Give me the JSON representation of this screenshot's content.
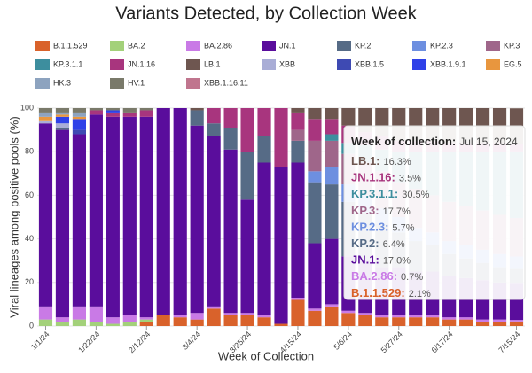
{
  "chart_data": {
    "type": "stacked_bar",
    "title": "Variants Detected, by Collection Week",
    "x_label": "Week of Collection",
    "y_label": "Viral lineages among positive pools (%)",
    "categories": [
      "1/1/24",
      null,
      null,
      "1/22/24",
      null,
      null,
      "2/12/24",
      null,
      null,
      "3/4/24",
      null,
      null,
      "3/25/24",
      null,
      null,
      "4/15/24",
      null,
      null,
      "5/6/24",
      null,
      null,
      "5/27/24",
      null,
      null,
      "6/17/24",
      null,
      null,
      null,
      "7/15/24"
    ],
    "ylim": [
      0,
      100
    ],
    "yticks": [
      0,
      20,
      40,
      60,
      80,
      100
    ],
    "series": [
      {
        "name": "B.1.1.529",
        "color": "#d9622b",
        "values": [
          0,
          0,
          0,
          0,
          0,
          0,
          2,
          5,
          4,
          3,
          8,
          5,
          5,
          4,
          1,
          12,
          7,
          9,
          6,
          5,
          4,
          4,
          4,
          4,
          3,
          3,
          2,
          2,
          2.1
        ]
      },
      {
        "name": "BA.2",
        "color": "#a3d17a",
        "values": [
          3,
          2,
          3,
          2,
          1,
          2,
          1,
          0,
          0,
          0,
          0,
          0,
          0,
          0,
          0,
          0,
          0,
          0,
          0,
          0,
          0,
          0,
          0,
          0,
          0,
          0,
          0,
          0,
          0
        ]
      },
      {
        "name": "BA.2.86",
        "color": "#c97ae6",
        "values": [
          6,
          2,
          6,
          7,
          3,
          3,
          1,
          0,
          1,
          3,
          1,
          1,
          1,
          1,
          0,
          1,
          1,
          1,
          1,
          1,
          1,
          1,
          1,
          1,
          1,
          1,
          1,
          1,
          0.7
        ]
      },
      {
        "name": "JN.1",
        "color": "#5a0d9c",
        "values": [
          84,
          86,
          79,
          88,
          92,
          91,
          92,
          95,
          95,
          86,
          78,
          75,
          52,
          70,
          72,
          62,
          30,
          30,
          25,
          24,
          22,
          22,
          20,
          20,
          19,
          18,
          18,
          17,
          17.0
        ]
      },
      {
        "name": "KP.2",
        "color": "#566b86",
        "values": [
          0,
          1,
          0,
          0,
          0,
          0,
          0,
          0,
          0,
          7,
          6,
          10,
          22,
          12,
          0,
          10,
          28,
          25,
          25,
          22,
          20,
          16,
          14,
          12,
          10,
          9,
          8,
          7,
          6.4
        ]
      },
      {
        "name": "KP.2.3",
        "color": "#6d8fe0",
        "values": [
          0,
          0,
          0,
          0,
          0,
          0,
          0,
          0,
          0,
          0,
          0,
          0,
          0,
          0,
          0,
          0,
          5,
          8,
          8,
          8,
          7,
          7,
          6,
          6,
          6,
          6,
          6,
          6,
          5.7
        ]
      },
      {
        "name": "KP.3",
        "color": "#9f668a",
        "values": [
          0,
          0,
          0,
          0,
          0,
          0,
          0,
          0,
          0,
          0,
          0,
          0,
          0,
          0,
          0,
          5,
          14,
          12,
          14,
          15,
          17,
          16,
          18,
          17,
          18,
          18,
          18,
          18,
          17.7
        ]
      },
      {
        "name": "KP.3.1.1",
        "color": "#3d8e9e",
        "values": [
          0,
          0,
          0,
          0,
          0,
          0,
          0,
          0,
          0,
          0,
          0,
          0,
          0,
          0,
          0,
          0,
          0,
          3,
          5,
          8,
          10,
          14,
          17,
          20,
          23,
          25,
          27,
          29,
          30.5
        ]
      },
      {
        "name": "JN.1.16",
        "color": "#a8357e",
        "values": [
          0,
          0,
          0,
          2,
          2,
          2,
          3,
          0,
          0,
          0,
          7,
          9,
          20,
          13,
          27,
          8,
          10,
          7,
          8,
          6,
          6,
          5,
          5,
          5,
          4,
          4,
          4,
          4,
          3.5
        ]
      },
      {
        "name": "LB.1",
        "color": "#6e5650",
        "values": [
          0,
          0,
          0,
          0,
          0,
          0,
          0,
          0,
          0,
          1,
          0,
          0,
          0,
          0,
          0,
          2,
          5,
          5,
          8,
          11,
          13,
          15,
          15,
          15,
          16,
          16,
          16,
          16,
          16.3
        ]
      },
      {
        "name": "XBB",
        "color": "#a9add6",
        "values": [
          1,
          2,
          0,
          0,
          0,
          0,
          0,
          0,
          0,
          0,
          0,
          0,
          0,
          0,
          0,
          0,
          0,
          0,
          0,
          0,
          0,
          0,
          0,
          0,
          0,
          0,
          0,
          0,
          0
        ]
      },
      {
        "name": "XBB.1.5",
        "color": "#3e4ab3",
        "values": [
          0,
          0,
          2,
          0,
          0,
          0,
          0,
          0,
          0,
          0,
          0,
          0,
          0,
          0,
          0,
          0,
          0,
          0,
          0,
          0,
          0,
          0,
          0,
          0,
          0,
          0,
          0,
          0,
          0
        ]
      },
      {
        "name": "XBB.1.9.1",
        "color": "#2f41e8",
        "values": [
          0,
          3,
          5,
          0,
          1,
          0,
          0,
          0,
          0,
          0,
          0,
          0,
          0,
          0,
          0,
          0,
          0,
          0,
          0,
          0,
          0,
          0,
          0,
          0,
          0,
          0,
          0,
          0,
          0
        ]
      },
      {
        "name": "EG.5",
        "color": "#e8963e",
        "values": [
          2,
          1,
          1,
          0,
          0,
          0,
          0,
          0,
          0,
          0,
          0,
          0,
          0,
          0,
          0,
          0,
          0,
          0,
          0,
          0,
          0,
          0,
          0,
          0,
          0,
          0,
          0,
          0,
          0
        ]
      },
      {
        "name": "HK.3",
        "color": "#8da3bf",
        "values": [
          2,
          1,
          2,
          0,
          0,
          0,
          0,
          0,
          0,
          0,
          0,
          0,
          0,
          0,
          0,
          0,
          0,
          0,
          0,
          0,
          0,
          0,
          0,
          0,
          0,
          0,
          0,
          0,
          0
        ]
      },
      {
        "name": "HV.1",
        "color": "#7a7a6a",
        "values": [
          2,
          2,
          2,
          1,
          1,
          2,
          1,
          0,
          0,
          0,
          0,
          0,
          0,
          0,
          0,
          0,
          0,
          0,
          0,
          0,
          0,
          0,
          0,
          0,
          0,
          0,
          0,
          0,
          0
        ]
      },
      {
        "name": "XBB.1.16.11",
        "color": "#c0758e",
        "values": [
          0,
          0,
          0,
          0,
          0,
          0,
          0,
          0,
          0,
          0,
          0,
          0,
          0,
          0,
          0,
          0,
          0,
          0,
          0,
          0,
          0,
          0,
          0,
          0,
          0,
          0,
          0,
          0,
          0
        ]
      }
    ],
    "tooltip": {
      "title": "Week of collection:",
      "date": "Jul 15, 2024",
      "items": [
        {
          "name": "LB.1",
          "value_label": "16.3%"
        },
        {
          "name": "JN.1.16",
          "value_label": "3.5%"
        },
        {
          "name": "KP.3.1.1",
          "value_label": "30.5%"
        },
        {
          "name": "KP.3",
          "value_label": "17.7%"
        },
        {
          "name": "KP.2.3",
          "value_label": "5.7%"
        },
        {
          "name": "KP.2",
          "value_label": "6.4%"
        },
        {
          "name": "JN.1",
          "value_label": "17.0%"
        },
        {
          "name": "BA.2.86",
          "value_label": "0.7%"
        },
        {
          "name": "B.1.1.529",
          "value_label": "2.1%"
        }
      ]
    }
  }
}
